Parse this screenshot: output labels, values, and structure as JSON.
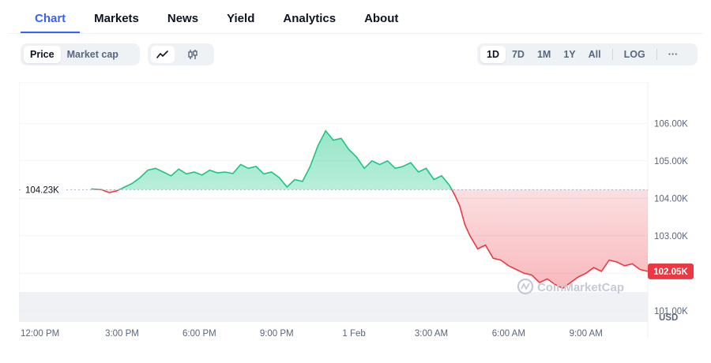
{
  "tabs": [
    "Chart",
    "Markets",
    "News",
    "Yield",
    "Analytics",
    "About"
  ],
  "toggle": {
    "price": "Price",
    "market_cap": "Market cap"
  },
  "ranges": [
    "1D",
    "7D",
    "1M",
    "1Y",
    "All",
    "LOG"
  ],
  "more_label": "···",
  "colors": {
    "accent": "#3861fb",
    "up": "#16c784",
    "down": "#ea3943"
  },
  "chart_data": {
    "type": "area",
    "x_ticks": [
      "12:00 PM",
      "3:00 PM",
      "6:00 PM",
      "9:00 PM",
      "1 Feb",
      "3:00 AM",
      "6:00 AM",
      "9:00 AM"
    ],
    "y_ticks": [
      "106.00K",
      "105.00K",
      "104.00K",
      "103.00K",
      "102.00K",
      "101.00K"
    ],
    "y_tick_values": [
      106000,
      105000,
      104000,
      103000,
      102000,
      101000
    ],
    "ylim": [
      100700,
      107100
    ],
    "unit": "USD",
    "baseline": 104230,
    "baseline_label": "104.23K",
    "current_label": "102.05K",
    "watermark": "CoinMarketCap",
    "x_range_hours": [
      -1,
      23.4
    ],
    "series": [
      {
        "values": [
          [
            1.8,
            104250
          ],
          [
            2.2,
            104230
          ],
          [
            2.5,
            104150
          ],
          [
            2.8,
            104200
          ],
          [
            3.1,
            104300
          ],
          [
            3.4,
            104400
          ],
          [
            3.7,
            104550
          ],
          [
            4.0,
            104750
          ],
          [
            4.3,
            104800
          ],
          [
            4.6,
            104700
          ],
          [
            4.9,
            104600
          ],
          [
            5.2,
            104780
          ],
          [
            5.5,
            104650
          ],
          [
            5.8,
            104700
          ],
          [
            6.1,
            104620
          ],
          [
            6.4,
            104750
          ],
          [
            6.7,
            104680
          ],
          [
            7.0,
            104700
          ],
          [
            7.3,
            104660
          ],
          [
            7.6,
            104900
          ],
          [
            7.9,
            104800
          ],
          [
            8.2,
            104850
          ],
          [
            8.5,
            104650
          ],
          [
            8.8,
            104700
          ],
          [
            9.1,
            104550
          ],
          [
            9.4,
            104300
          ],
          [
            9.7,
            104500
          ],
          [
            10.0,
            104450
          ],
          [
            10.3,
            104850
          ],
          [
            10.6,
            105400
          ],
          [
            10.9,
            105800
          ],
          [
            11.2,
            105550
          ],
          [
            11.5,
            105600
          ],
          [
            11.8,
            105300
          ],
          [
            12.1,
            105100
          ],
          [
            12.4,
            104800
          ],
          [
            12.7,
            105000
          ],
          [
            13.0,
            104900
          ],
          [
            13.3,
            105000
          ],
          [
            13.6,
            104800
          ],
          [
            13.9,
            104850
          ],
          [
            14.2,
            104950
          ],
          [
            14.5,
            104700
          ],
          [
            14.8,
            104800
          ],
          [
            15.1,
            104500
          ],
          [
            15.4,
            104600
          ],
          [
            15.7,
            104350
          ],
          [
            15.9,
            104100
          ],
          [
            16.1,
            103800
          ],
          [
            16.3,
            103300
          ],
          [
            16.5,
            103000
          ],
          [
            16.8,
            102650
          ],
          [
            17.1,
            102750
          ],
          [
            17.4,
            102400
          ],
          [
            17.7,
            102350
          ],
          [
            18.0,
            102200
          ],
          [
            18.3,
            102100
          ],
          [
            18.6,
            102000
          ],
          [
            18.9,
            101950
          ],
          [
            19.2,
            101750
          ],
          [
            19.5,
            101850
          ],
          [
            19.8,
            101700
          ],
          [
            20.1,
            101600
          ],
          [
            20.4,
            101750
          ],
          [
            20.7,
            101900
          ],
          [
            21.0,
            102000
          ],
          [
            21.3,
            102150
          ],
          [
            21.6,
            102050
          ],
          [
            21.9,
            102350
          ],
          [
            22.2,
            102300
          ],
          [
            22.5,
            102200
          ],
          [
            22.8,
            102250
          ],
          [
            23.1,
            102100
          ],
          [
            23.4,
            102050
          ]
        ]
      }
    ],
    "grid": true
  }
}
